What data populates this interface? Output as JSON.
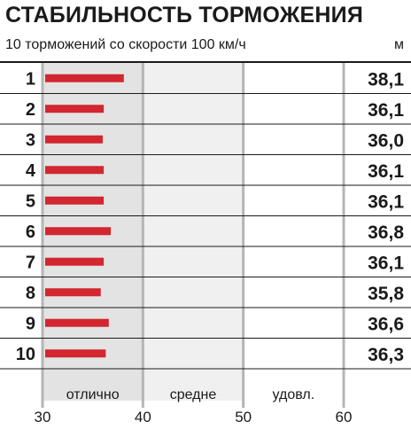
{
  "header": {
    "title": "СТАБИЛЬНОСТЬ ТОРМОЖЕНИЯ",
    "subtitle": "10 торможений со скорости 100 км/ч",
    "unit": "м"
  },
  "colors": {
    "bar": "#d22630",
    "zone_excellent": "#e3e3e3",
    "zone_average": "#f0f0f0",
    "zone_satisfactory": "#ffffff",
    "divider": "#b5b5b5",
    "row_line": "#1a1a1a"
  },
  "chart_data": {
    "type": "bar",
    "orientation": "horizontal",
    "categories": [
      "1",
      "2",
      "3",
      "4",
      "5",
      "6",
      "7",
      "8",
      "9",
      "10"
    ],
    "values": [
      38.1,
      36.1,
      36.0,
      36.1,
      36.1,
      36.8,
      36.1,
      35.8,
      36.6,
      36.3
    ],
    "value_labels": [
      "38,1",
      "36,1",
      "36,0",
      "36,1",
      "36,1",
      "36,8",
      "36,1",
      "35,8",
      "36,6",
      "36,3"
    ],
    "xlim": [
      30,
      60
    ],
    "x_ticks": [
      "30",
      "40",
      "50",
      "60"
    ],
    "zones": [
      {
        "label": "отлично",
        "from": 30,
        "to": 40
      },
      {
        "label": "средне",
        "from": 40,
        "to": 50
      },
      {
        "label": "удовл.",
        "from": 50,
        "to": 60
      }
    ],
    "grid": true
  }
}
